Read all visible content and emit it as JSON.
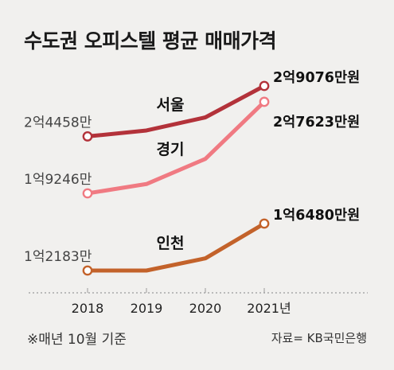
{
  "title": "수도권 오피스텔 평균 매매가격",
  "note": "※매년 10월 기준",
  "source": "자료= KB국민은행",
  "chart_data": {
    "type": "line",
    "title": "수도권 오피스텔 평균 매매가격",
    "x": [
      "2018",
      "2019",
      "2020",
      "2021년"
    ],
    "unit": "만원",
    "grid": false,
    "legend": "inline labels",
    "series": [
      {
        "name": "서울",
        "values": [
          24458,
          25000,
          26200,
          29076
        ],
        "start_label": "2억4458만",
        "end_label": "2억9076만원",
        "color": "#b3323a"
      },
      {
        "name": "경기",
        "values": [
          19246,
          20100,
          22400,
          27623
        ],
        "start_label": "1억9246만",
        "end_label": "2억7623만원",
        "color": "#f07a82"
      },
      {
        "name": "인천",
        "values": [
          12183,
          12183,
          13300,
          16480
        ],
        "start_label": "1억2183만",
        "end_label": "1억6480만원",
        "color": "#c3622a"
      }
    ]
  }
}
